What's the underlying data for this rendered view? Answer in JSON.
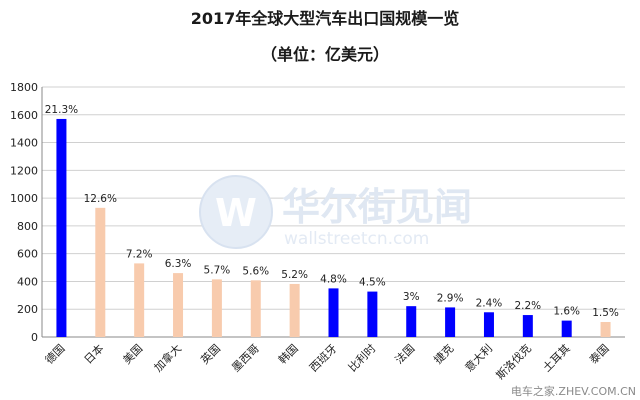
{
  "chart_data": {
    "type": "bar",
    "title": "2017年全球大型汽车出口国规模一览",
    "subtitle": "（单位：亿美元）",
    "categories": [
      "德国",
      "日本",
      "美国",
      "加拿大",
      "英国",
      "墨西哥",
      "韩国",
      "西班牙",
      "比利时",
      "法国",
      "捷克",
      "意大利",
      "斯洛伐克",
      "土耳其",
      "泰国"
    ],
    "values": [
      1570,
      930,
      530,
      460,
      415,
      408,
      382,
      350,
      327,
      222,
      213,
      178,
      158,
      118,
      108
    ],
    "share_labels": [
      "21.3%",
      "12.6%",
      "7.2%",
      "6.3%",
      "5.7%",
      "5.6%",
      "5.2%",
      "4.8%",
      "4.5%",
      "3%",
      "2.9%",
      "2.4%",
      "2.2%",
      "1.6%",
      "1.5%"
    ],
    "bar_colors": [
      "#0000ff",
      "#f8cbad",
      "#f8cbad",
      "#f8cbad",
      "#f8cbad",
      "#f8cbad",
      "#f8cbad",
      "#0000ff",
      "#0000ff",
      "#0000ff",
      "#0000ff",
      "#0000ff",
      "#0000ff",
      "#0000ff",
      "#f8cbad"
    ],
    "yticks": [
      0,
      200,
      400,
      600,
      800,
      1000,
      1200,
      1400,
      1600,
      1800
    ],
    "ylim": [
      0,
      1800
    ],
    "grid": true
  },
  "watermark": {
    "brand_cn": "华尔街见闻",
    "brand_en": "wallstreetcn.com"
  },
  "watermark2": "电车之家.ZHEV.COM.CN"
}
